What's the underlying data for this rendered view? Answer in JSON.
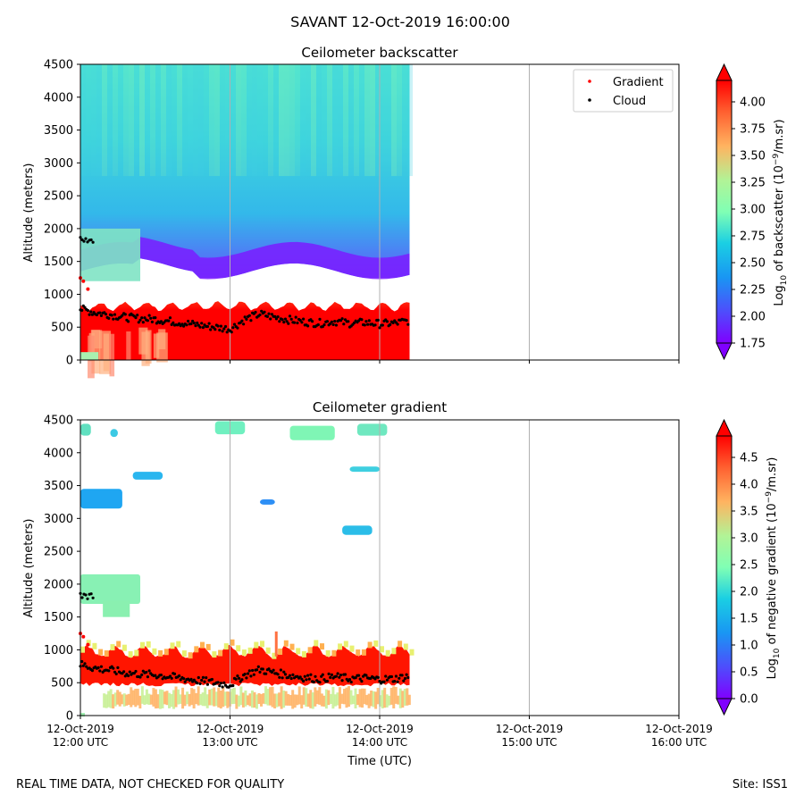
{
  "figure": {
    "title": "SAVANT 12-Oct-2019 16:00:00",
    "footer_left": "REAL TIME DATA, NOT CHECKED FOR QUALITY",
    "footer_right": "Site: ISS1"
  },
  "x_axis": {
    "label": "Time (UTC)",
    "ticks": [
      {
        "date": "12-Oct-2019",
        "time": "12:00 UTC"
      },
      {
        "date": "12-Oct-2019",
        "time": "13:00 UTC"
      },
      {
        "date": "12-Oct-2019",
        "time": "14:00 UTC"
      },
      {
        "date": "12-Oct-2019",
        "time": "15:00 UTC"
      },
      {
        "date": "12-Oct-2019",
        "time": "16:00 UTC"
      }
    ]
  },
  "legend": {
    "items": [
      {
        "label": "Gradient",
        "color": "#ff0000"
      },
      {
        "label": "Cloud",
        "color": "#000000"
      }
    ]
  },
  "chart_data": [
    {
      "type": "heatmap",
      "title": "Ceilometer backscatter",
      "xlabel": "",
      "ylabel": "Altitude (meters)",
      "xlim_hours": [
        12,
        16
      ],
      "data_end_hour": 14.2,
      "ylim": [
        0,
        4500
      ],
      "yticks": [
        "0",
        "500",
        "1000",
        "1500",
        "2000",
        "2500",
        "3000",
        "3500",
        "4000",
        "4500"
      ],
      "colorbar": {
        "label": "Log10 of backscatter (10^-9/m.sr)",
        "label_main": "Log",
        "label_sub": "10",
        "label_mid": " of backscatter (10",
        "label_sup": "−9",
        "label_end": "/m.sr)",
        "range": [
          1.75,
          4.2
        ],
        "ticks": [
          "1.75",
          "2.00",
          "2.25",
          "2.50",
          "2.75",
          "3.00",
          "3.25",
          "3.50",
          "3.75",
          "4.00"
        ],
        "extend": "both"
      },
      "regions": [
        {
          "name": "boundary-layer",
          "altitude_range": [
            0,
            800
          ],
          "log_value": 4.2
        },
        {
          "name": "residual-layer-base",
          "altitude_range": [
            1250,
            1500
          ],
          "log_value": 1.9
        },
        {
          "name": "free-troposphere",
          "altitude_range": [
            1500,
            4500
          ],
          "log_value": 2.6
        }
      ],
      "cloud_altitude_m": {
        "hours": [
          12.0,
          12.1,
          12.2,
          12.3,
          12.4,
          12.5,
          12.6,
          12.7,
          12.8,
          12.9,
          13.0,
          13.1,
          13.2,
          13.3,
          13.4,
          13.5,
          13.6,
          13.7,
          13.8,
          13.9,
          14.0,
          14.1,
          14.2
        ],
        "values": [
          780,
          720,
          690,
          650,
          630,
          620,
          590,
          560,
          530,
          500,
          470,
          620,
          700,
          650,
          610,
          580,
          560,
          590,
          560,
          570,
          550,
          560,
          600
        ]
      },
      "cloud_upper_m": {
        "hours": [
          12.0,
          12.05,
          12.1
        ],
        "values": [
          1850,
          1800,
          1830
        ]
      },
      "gradient_points_m": {
        "hours": [
          12.0,
          12.02,
          12.05
        ],
        "values": [
          1250,
          1200,
          1080
        ]
      }
    },
    {
      "type": "heatmap",
      "title": "Ceilometer gradient",
      "xlabel": "Time (UTC)",
      "ylabel": "Altitude (meters)",
      "xlim_hours": [
        12,
        16
      ],
      "data_end_hour": 14.2,
      "ylim": [
        0,
        4500
      ],
      "yticks": [
        "0",
        "500",
        "1000",
        "1500",
        "2000",
        "2500",
        "3000",
        "3500",
        "4000",
        "4500"
      ],
      "colorbar": {
        "label": "Log10 of negative gradient (10^-9/m.sr)",
        "label_main": "Log",
        "label_sub": "10",
        "label_mid": " of negative gradient (10",
        "label_sup": "−9",
        "label_end": "/m.sr)",
        "range": [
          0.0,
          4.9
        ],
        "ticks": [
          "0.0",
          "0.5",
          "1.0",
          "1.5",
          "2.0",
          "2.5",
          "3.0",
          "3.5",
          "4.0",
          "4.5"
        ],
        "extend": "both"
      },
      "regions": [
        {
          "name": "inversion-band",
          "altitude_range": [
            500,
            1000
          ],
          "log_value": 4.5
        },
        {
          "name": "surface-layer",
          "altitude_range": [
            100,
            450
          ],
          "log_value": 3.3
        },
        {
          "name": "upper-layer",
          "altitude_range": [
            1700,
            2150
          ],
          "log_value": 2.0
        }
      ],
      "cloud_altitude_m": {
        "hours": [
          12.0,
          12.1,
          12.2,
          12.3,
          12.4,
          12.5,
          12.6,
          12.7,
          12.8,
          12.9,
          13.0,
          13.1,
          13.2,
          13.3,
          13.4,
          13.5,
          13.6,
          13.7,
          13.8,
          13.9,
          14.0,
          14.1,
          14.2
        ],
        "values": [
          780,
          720,
          690,
          650,
          630,
          620,
          590,
          560,
          530,
          500,
          470,
          620,
          700,
          650,
          610,
          580,
          560,
          590,
          560,
          570,
          550,
          560,
          600
        ]
      },
      "cloud_upper_m": {
        "hours": [
          12.0,
          12.05,
          12.1
        ],
        "values": [
          1850,
          1800,
          1830
        ]
      },
      "gradient_points_m": {
        "hours": [
          12.0,
          12.02,
          12.05
        ],
        "values": [
          1250,
          1200,
          1080
        ]
      }
    }
  ]
}
